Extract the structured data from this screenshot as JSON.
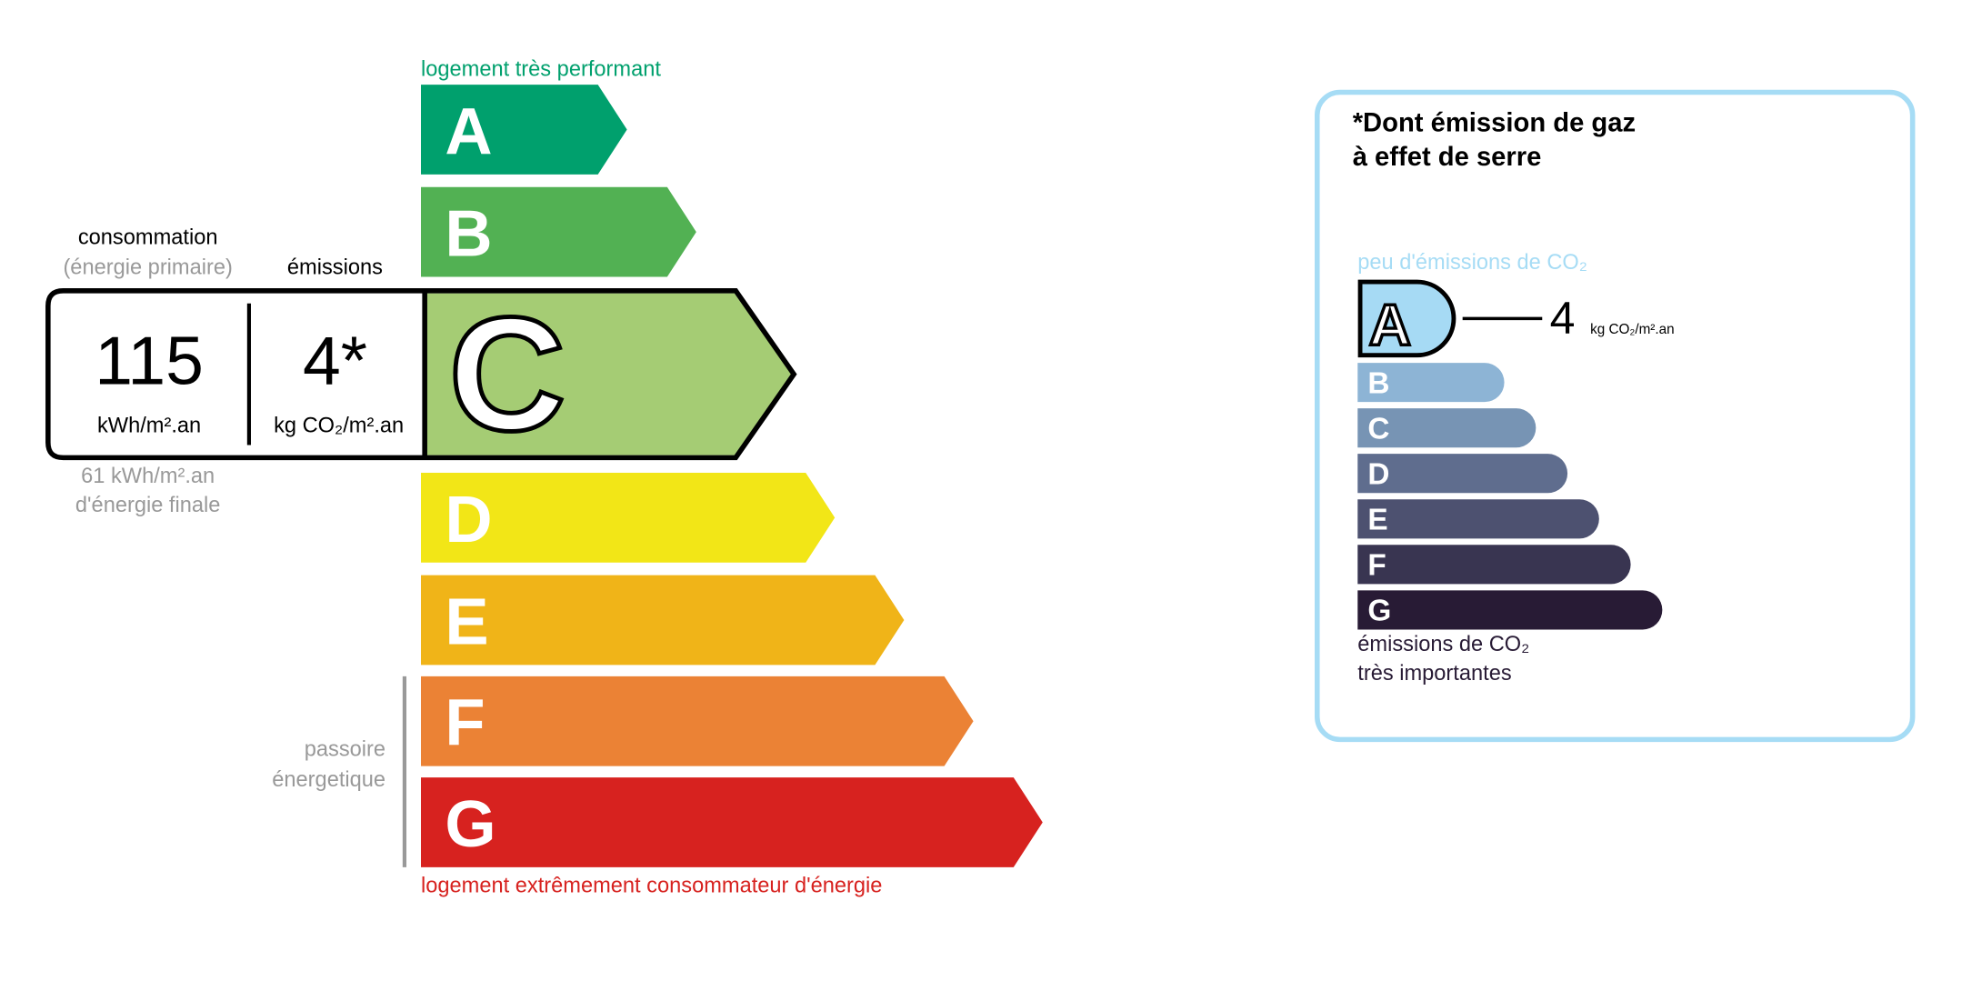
{
  "energy": {
    "top_label": "logement très performant",
    "bottom_label": "logement extrêmement consommateur d'énergie",
    "passoire_line1": "passoire",
    "passoire_line2": "énergetique",
    "selected_class": "C",
    "classes": [
      {
        "letter": "A",
        "color": "#00a06d"
      },
      {
        "letter": "B",
        "color": "#52b153"
      },
      {
        "letter": "C",
        "color": "#a5cc74"
      },
      {
        "letter": "D",
        "color": "#f2e617"
      },
      {
        "letter": "E",
        "color": "#f0b418"
      },
      {
        "letter": "F",
        "color": "#eb8235"
      },
      {
        "letter": "G",
        "color": "#d7221f"
      }
    ],
    "top_label_color": "#00a06d",
    "bottom_label_color": "#d7221f"
  },
  "values": {
    "consumption_title": "consommation",
    "consumption_subtitle": "(énergie primaire)",
    "emissions_title": "émissions",
    "consumption_value": "115",
    "consumption_unit": "kWh/m².an",
    "emissions_value": "4*",
    "emissions_unit": "kg CO₂/m².an",
    "final_energy_value": "61 kWh/m².an",
    "final_energy_label": "d'énergie finale"
  },
  "ghg": {
    "title_line1": "*Dont émission de gaz",
    "title_line2": "à effet de serre",
    "top_label": "peu d'émissions de CO₂",
    "bottom_label_line1": "émissions de CO₂",
    "bottom_label_line2": "très importantes",
    "selected_class": "A",
    "value": "4",
    "unit": "kg CO₂/m².an",
    "border_color": "#a6dcf5",
    "classes": [
      {
        "letter": "A",
        "color": "#a6daf4"
      },
      {
        "letter": "B",
        "color": "#8db4d5"
      },
      {
        "letter": "C",
        "color": "#7794b4"
      },
      {
        "letter": "D",
        "color": "#5f6d8e"
      },
      {
        "letter": "E",
        "color": "#4d5170"
      },
      {
        "letter": "F",
        "color": "#393551"
      },
      {
        "letter": "G",
        "color": "#281b35"
      }
    ]
  }
}
